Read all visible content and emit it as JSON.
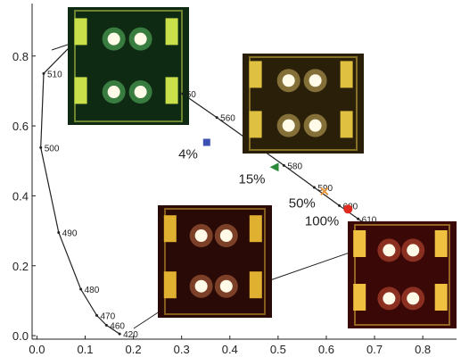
{
  "chart_data": {
    "type": "scatter",
    "xlim": [
      -0.01,
      0.87
    ],
    "ylim": [
      -0.01,
      0.95
    ],
    "xticks": [
      {
        "value": 0,
        "label": "0.0"
      },
      {
        "value": 0.1,
        "label": "0.1"
      },
      {
        "value": 0.2,
        "label": "0.2"
      },
      {
        "value": 0.3,
        "label": "0.3"
      },
      {
        "value": 0.4,
        "label": "0.4"
      },
      {
        "value": 0.5,
        "label": "0.5"
      },
      {
        "value": 0.6,
        "label": "0.6"
      },
      {
        "value": 0.7,
        "label": "0.7"
      },
      {
        "value": 0.8,
        "label": "0.8"
      }
    ],
    "yticks": [
      {
        "value": 0,
        "label": "0.0"
      },
      {
        "value": 0.2,
        "label": "0.2"
      },
      {
        "value": 0.4,
        "label": "0.4"
      },
      {
        "value": 0.6,
        "label": "0.6"
      },
      {
        "value": 0.8,
        "label": "0.8"
      }
    ],
    "locus": {
      "x": [
        0.1741,
        0.1714,
        0.144,
        0.124,
        0.091,
        0.045,
        0.008,
        0.014,
        0.074,
        0.23,
        0.302,
        0.373,
        0.512,
        0.575,
        0.627,
        0.666,
        0.7347
      ],
      "y": [
        0.005,
        0.005,
        0.03,
        0.058,
        0.133,
        0.295,
        0.538,
        0.75,
        0.834,
        0.754,
        0.692,
        0.624,
        0.487,
        0.424,
        0.372,
        0.334,
        0.2653
      ],
      "labels": [
        null,
        "420",
        "460",
        "470",
        "480",
        "490",
        "500",
        "510",
        null,
        null,
        "50",
        "560",
        "580",
        "590",
        "600",
        "610",
        null
      ]
    },
    "points": [
      {
        "label": "4%",
        "x": 0.352,
        "y": 0.553,
        "color": "#3b50b0",
        "marker": "square"
      },
      {
        "label": "15%",
        "x": 0.492,
        "y": 0.482,
        "color": "#2a8a3a",
        "marker": "triangle"
      },
      {
        "label": "50%",
        "x": 0.596,
        "y": 0.413,
        "color": "#e8963a",
        "marker": "cross"
      },
      {
        "label": "100%",
        "x": 0.645,
        "y": 0.362,
        "color": "#e02a20",
        "marker": "circle"
      }
    ]
  }
}
